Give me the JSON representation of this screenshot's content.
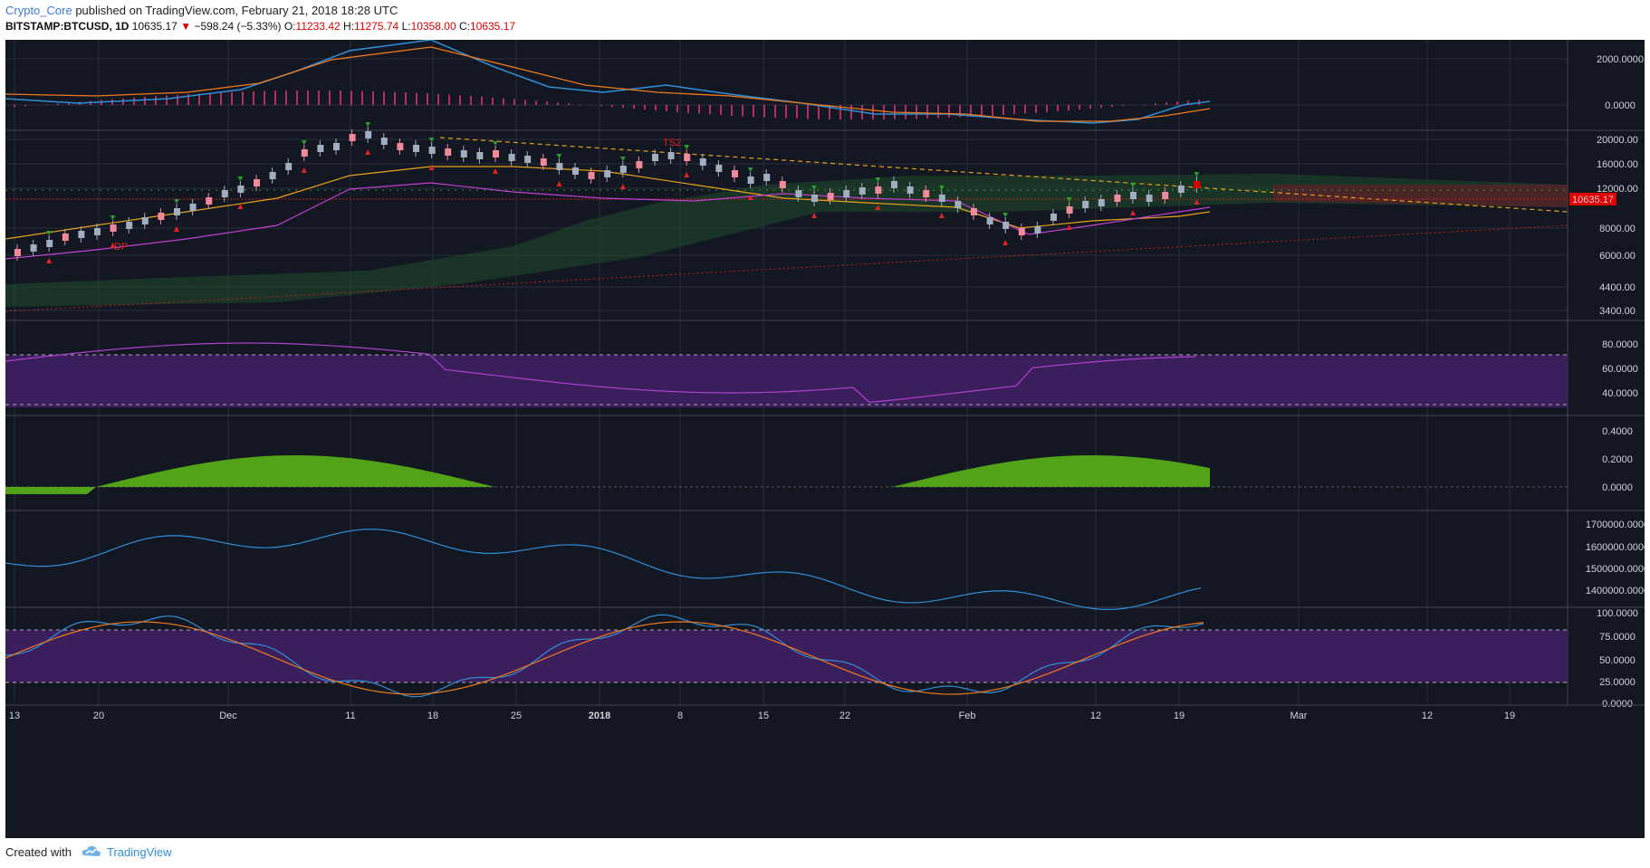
{
  "header": {
    "author": "Crypto_Core",
    "published_text": " published on TradingView.com, February 21, 2018 18:28 UTC",
    "symbol": "BITSTAMP:BTCUSD, 1D",
    "last": "10635.17",
    "change_arrow": "▼",
    "change": "−598.24 (−5.33%)",
    "o_label": "O:",
    "o": "11233.42",
    "h_label": "H:",
    "h": "11275.74",
    "l_label": "L:",
    "l": "10358.00",
    "c_label": "C:",
    "c": "10635.17"
  },
  "colors": {
    "background": "#131722",
    "up_candle": "#a0aec0",
    "down_candle": "#f08a9a",
    "accent_blue": "#2f8fd8",
    "price_label": "#e00000",
    "rsi_band": "#3a1f5c",
    "stoch_band": "#3a1f5c",
    "osc_fill": "#52a317"
  },
  "panes": {
    "macd": {
      "ticks": [
        "2000.0000",
        "0.0000"
      ]
    },
    "price": {
      "ticks": [
        "20000.00",
        "16000.00",
        "12000.00",
        "8000.00",
        "6000.00",
        "4400.00",
        "3400.00"
      ],
      "last_label": "10635.17",
      "annotations": [
        "DP",
        "TS2"
      ]
    },
    "rsi": {
      "ticks": [
        "80.0000",
        "60.0000",
        "40.0000"
      ]
    },
    "osc": {
      "ticks": [
        "0.4000",
        "0.2000",
        "0.0000"
      ]
    },
    "obv": {
      "ticks": [
        "1700000.0000",
        "1600000.0000",
        "1500000.0000",
        "1400000.0000"
      ]
    },
    "stoch": {
      "ticks": [
        "100.0000",
        "75.0000",
        "50.0000",
        "25.0000",
        "0.0000"
      ]
    }
  },
  "x_axis": {
    "labels": [
      "13",
      "20",
      "Dec",
      "11",
      "18",
      "25",
      "2018",
      "8",
      "15",
      "22",
      "Feb",
      "12",
      "19",
      "Mar",
      "12",
      "19"
    ]
  },
  "footer": {
    "created": "Created with",
    "brand": "TradingView"
  },
  "icons": {
    "logo": "tradingview-cloud-icon"
  }
}
